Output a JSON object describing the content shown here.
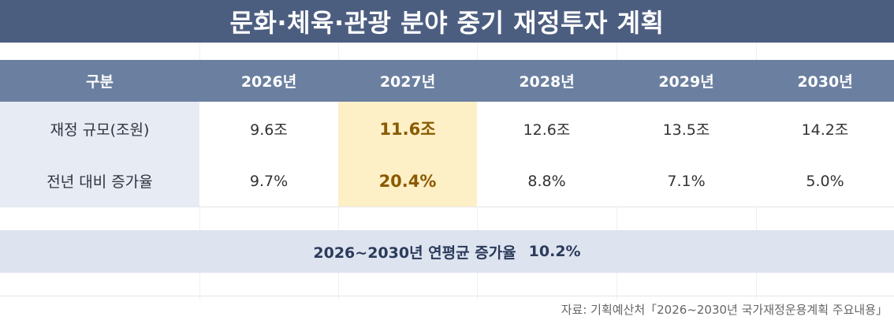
{
  "title": "문화·체육·관광 분야 중기 재정투자 계획",
  "header": {
    "label": "구분",
    "years": [
      "2026년",
      "2027년",
      "2028년",
      "2029년",
      "2030년"
    ]
  },
  "rows": [
    {
      "label": "재정 규모(조원)",
      "values": [
        "9.6조",
        "11.6조",
        "12.6조",
        "13.5조",
        "14.2조"
      ]
    },
    {
      "label": "전년 대비 증가율",
      "values": [
        "9.7%",
        "20.4%",
        "8.8%",
        "7.1%",
        "5.0%"
      ]
    }
  ],
  "highlight_column": "2027년",
  "summary": {
    "label": "2026~2030년 연평균 증가율",
    "value": "10.2%"
  },
  "source": "자료: 기획예산처「2026~2030년 국가재정운용계획 주요내용」",
  "colors": {
    "title_bg": "#4c5e80",
    "header_bg": "#6b7fa0",
    "label_bg": "#e7ebf3",
    "highlight_bg": "#fdefc6",
    "highlight_text": "#8a5a00",
    "summary_bg": "#dde4f0"
  }
}
